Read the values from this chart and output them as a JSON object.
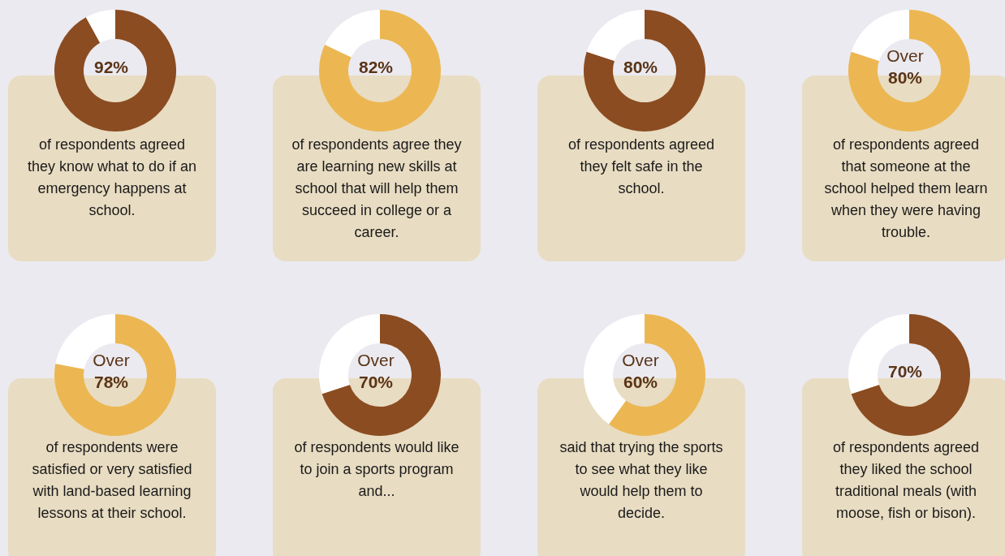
{
  "chart_data": [
    {
      "type": "donut",
      "categories": [
        null,
        null
      ],
      "values": [
        92,
        8
      ],
      "colors": [
        "#8b4c21",
        "#ffffff"
      ],
      "title": "92%",
      "annotations": [
        "of respondents agreed they know what to do if an emergency happens at school."
      ]
    },
    {
      "type": "donut",
      "categories": [
        null,
        null
      ],
      "values": [
        82,
        18
      ],
      "colors": [
        "#ecb752",
        "#ffffff"
      ],
      "title": "82%",
      "annotations": [
        "of respondents agree they are learning new skills at school that will help them succeed in college or a career."
      ]
    },
    {
      "type": "donut",
      "categories": [
        null,
        null
      ],
      "values": [
        80,
        20
      ],
      "colors": [
        "#8b4c21",
        "#ffffff"
      ],
      "title": "80%",
      "annotations": [
        "of respondents agreed they felt safe in the school."
      ]
    },
    {
      "type": "donut",
      "categories": [
        null,
        null
      ],
      "values": [
        80,
        20
      ],
      "colors": [
        "#ecb752",
        "#ffffff"
      ],
      "title": "Over 80%",
      "annotations": [
        "of respondents agreed that someone at the school helped them learn when they were having trouble."
      ]
    },
    {
      "type": "donut",
      "categories": [
        null,
        null
      ],
      "values": [
        78,
        22
      ],
      "colors": [
        "#ecb752",
        "#ffffff"
      ],
      "title": "Over 78%",
      "annotations": [
        "of respondents were satisfied or very satisfied with land-based learning lessons at their school."
      ]
    },
    {
      "type": "donut",
      "categories": [
        null,
        null
      ],
      "values": [
        70,
        30
      ],
      "colors": [
        "#8b4c21",
        "#ffffff"
      ],
      "title": "Over 70%",
      "annotations": [
        "of respondents would like to join a sports program and..."
      ]
    },
    {
      "type": "donut",
      "categories": [
        null,
        null
      ],
      "values": [
        60,
        40
      ],
      "colors": [
        "#ecb752",
        "#ffffff"
      ],
      "title": "Over 60%",
      "annotations": [
        "said that trying the sports to see what they like would help them to decide."
      ]
    },
    {
      "type": "donut",
      "categories": [
        null,
        null
      ],
      "values": [
        70,
        30
      ],
      "colors": [
        "#8b4c21",
        "#ffffff"
      ],
      "title": "70%",
      "annotations": [
        "of respondents agreed they liked the school traditional meals (with moose, fish or bison)."
      ]
    }
  ]
}
